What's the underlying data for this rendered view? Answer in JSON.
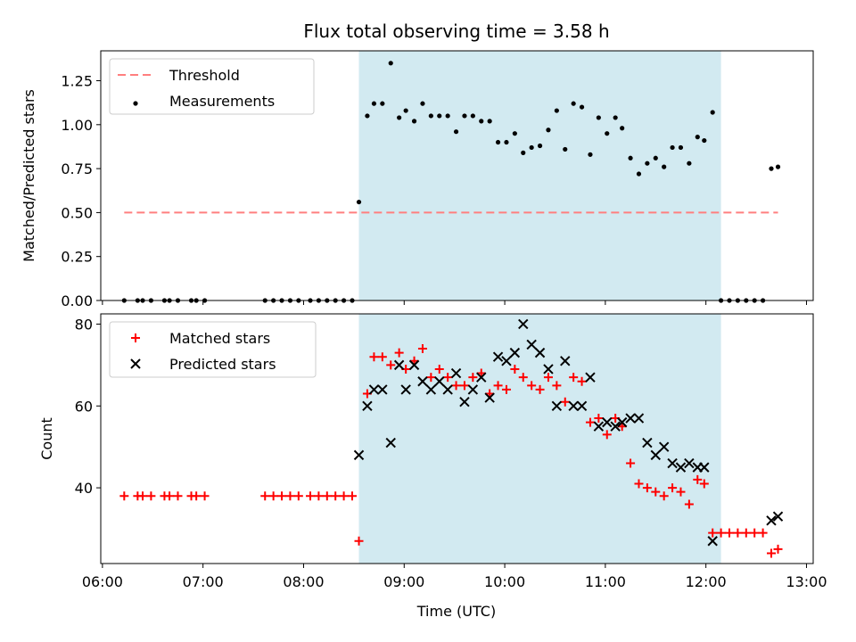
{
  "figure": {
    "title": "Flux total observing time = 3.58 h",
    "xlabel": "Time (UTC)"
  },
  "chart_data": [
    {
      "type": "scatter",
      "ylabel": "Matched/Predicted stars",
      "ylim": [
        0,
        1.42
      ],
      "yticks": [
        0,
        0.25,
        0.5,
        0.75,
        1.0,
        1.25
      ],
      "ytick_labels": [
        "0.00",
        "0.25",
        "0.50",
        "0.75",
        "1.00",
        "1.25"
      ],
      "xlim": [
        "05:59",
        "13:04"
      ],
      "xticks": [
        "06:00",
        "07:00",
        "08:00",
        "09:00",
        "10:00",
        "11:00",
        "12:00",
        "13:00"
      ],
      "shaded_interval": [
        "08:33",
        "12:09"
      ],
      "shade_color": "#add8e6",
      "legend_position": "upper left",
      "series": [
        {
          "name": "Threshold",
          "kind": "dashed-line",
          "color": "#ff7f7f",
          "x": [
            "06:13",
            "12:43"
          ],
          "y": [
            0.5,
            0.5
          ]
        },
        {
          "name": "Measurements",
          "kind": "dot",
          "color": "#000000",
          "points": [
            [
              "06:13",
              0
            ],
            [
              "06:21",
              0
            ],
            [
              "06:24",
              0
            ],
            [
              "06:29",
              0
            ],
            [
              "06:37",
              0
            ],
            [
              "06:40",
              0
            ],
            [
              "06:45",
              0
            ],
            [
              "06:53",
              0
            ],
            [
              "06:56",
              0
            ],
            [
              "07:01",
              0
            ],
            [
              "07:37",
              0
            ],
            [
              "07:42",
              0
            ],
            [
              "07:47",
              0
            ],
            [
              "07:52",
              0
            ],
            [
              "07:57",
              0
            ],
            [
              "08:04",
              0
            ],
            [
              "08:09",
              0
            ],
            [
              "08:14",
              0
            ],
            [
              "08:19",
              0
            ],
            [
              "08:24",
              0
            ],
            [
              "08:29",
              0
            ],
            [
              "08:33",
              0.56
            ],
            [
              "08:38",
              1.05
            ],
            [
              "08:42",
              1.12
            ],
            [
              "08:47",
              1.12
            ],
            [
              "08:52",
              1.35
            ],
            [
              "08:57",
              1.04
            ],
            [
              "09:01",
              1.08
            ],
            [
              "09:06",
              1.02
            ],
            [
              "09:11",
              1.12
            ],
            [
              "09:16",
              1.05
            ],
            [
              "09:21",
              1.05
            ],
            [
              "09:26",
              1.05
            ],
            [
              "09:31",
              0.96
            ],
            [
              "09:36",
              1.05
            ],
            [
              "09:41",
              1.05
            ],
            [
              "09:46",
              1.02
            ],
            [
              "09:51",
              1.02
            ],
            [
              "09:56",
              0.9
            ],
            [
              "10:01",
              0.9
            ],
            [
              "10:06",
              0.95
            ],
            [
              "10:11",
              0.84
            ],
            [
              "10:16",
              0.87
            ],
            [
              "10:21",
              0.88
            ],
            [
              "10:26",
              0.97
            ],
            [
              "10:31",
              1.08
            ],
            [
              "10:36",
              0.86
            ],
            [
              "10:41",
              1.12
            ],
            [
              "10:46",
              1.1
            ],
            [
              "10:51",
              0.83
            ],
            [
              "10:56",
              1.04
            ],
            [
              "11:01",
              0.95
            ],
            [
              "11:06",
              1.04
            ],
            [
              "11:10",
              0.98
            ],
            [
              "11:15",
              0.81
            ],
            [
              "11:20",
              0.72
            ],
            [
              "11:25",
              0.78
            ],
            [
              "11:30",
              0.81
            ],
            [
              "11:35",
              0.76
            ],
            [
              "11:40",
              0.87
            ],
            [
              "11:45",
              0.87
            ],
            [
              "11:50",
              0.78
            ],
            [
              "11:55",
              0.93
            ],
            [
              "11:59",
              0.91
            ],
            [
              "12:04",
              1.07
            ],
            [
              "12:09",
              0
            ],
            [
              "12:14",
              0
            ],
            [
              "12:19",
              0
            ],
            [
              "12:24",
              0
            ],
            [
              "12:29",
              0
            ],
            [
              "12:34",
              0
            ],
            [
              "12:39",
              0.75
            ],
            [
              "12:43",
              0.76
            ]
          ]
        }
      ]
    },
    {
      "type": "scatter",
      "ylabel": "Count",
      "ylim": [
        21.5,
        82.5
      ],
      "yticks": [
        40,
        60,
        80
      ],
      "ytick_labels": [
        "40",
        "60",
        "80"
      ],
      "xlim": [
        "05:59",
        "13:04"
      ],
      "xticks": [
        "06:00",
        "07:00",
        "08:00",
        "09:00",
        "10:00",
        "11:00",
        "12:00",
        "13:00"
      ],
      "xtick_labels": [
        "06:00",
        "07:00",
        "08:00",
        "09:00",
        "10:00",
        "11:00",
        "12:00",
        "13:00"
      ],
      "shaded_interval": [
        "08:33",
        "12:09"
      ],
      "shade_color": "#add8e6",
      "legend_position": "upper left",
      "series": [
        {
          "name": "Matched stars",
          "kind": "plus",
          "color": "#ff0000",
          "points": [
            [
              "06:13",
              38
            ],
            [
              "06:21",
              38
            ],
            [
              "06:24",
              38
            ],
            [
              "06:29",
              38
            ],
            [
              "06:37",
              38
            ],
            [
              "06:40",
              38
            ],
            [
              "06:45",
              38
            ],
            [
              "06:53",
              38
            ],
            [
              "06:56",
              38
            ],
            [
              "07:01",
              38
            ],
            [
              "07:37",
              38
            ],
            [
              "07:42",
              38
            ],
            [
              "07:47",
              38
            ],
            [
              "07:52",
              38
            ],
            [
              "07:57",
              38
            ],
            [
              "08:04",
              38
            ],
            [
              "08:09",
              38
            ],
            [
              "08:14",
              38
            ],
            [
              "08:19",
              38
            ],
            [
              "08:24",
              38
            ],
            [
              "08:29",
              38
            ],
            [
              "08:33",
              27
            ],
            [
              "08:38",
              63
            ],
            [
              "08:42",
              72
            ],
            [
              "08:47",
              72
            ],
            [
              "08:52",
              70
            ],
            [
              "08:57",
              73
            ],
            [
              "09:01",
              69
            ],
            [
              "09:06",
              71
            ],
            [
              "09:11",
              74
            ],
            [
              "09:16",
              67
            ],
            [
              "09:21",
              69
            ],
            [
              "09:26",
              67
            ],
            [
              "09:31",
              65
            ],
            [
              "09:36",
              65
            ],
            [
              "09:41",
              67
            ],
            [
              "09:46",
              68
            ],
            [
              "09:51",
              63
            ],
            [
              "09:56",
              65
            ],
            [
              "10:01",
              64
            ],
            [
              "10:06",
              69
            ],
            [
              "10:11",
              67
            ],
            [
              "10:16",
              65
            ],
            [
              "10:21",
              64
            ],
            [
              "10:26",
              67
            ],
            [
              "10:31",
              65
            ],
            [
              "10:36",
              61
            ],
            [
              "10:41",
              67
            ],
            [
              "10:46",
              66
            ],
            [
              "10:51",
              56
            ],
            [
              "10:56",
              57
            ],
            [
              "11:01",
              53
            ],
            [
              "11:06",
              57
            ],
            [
              "11:10",
              55
            ],
            [
              "11:15",
              46
            ],
            [
              "11:20",
              41
            ],
            [
              "11:25",
              40
            ],
            [
              "11:30",
              39
            ],
            [
              "11:35",
              38
            ],
            [
              "11:40",
              40
            ],
            [
              "11:45",
              39
            ],
            [
              "11:50",
              36
            ],
            [
              "11:55",
              42
            ],
            [
              "11:59",
              41
            ],
            [
              "12:04",
              29
            ],
            [
              "12:09",
              29
            ],
            [
              "12:14",
              29
            ],
            [
              "12:19",
              29
            ],
            [
              "12:24",
              29
            ],
            [
              "12:29",
              29
            ],
            [
              "12:34",
              29
            ],
            [
              "12:39",
              24
            ],
            [
              "12:43",
              25
            ]
          ]
        },
        {
          "name": "Predicted stars",
          "kind": "cross",
          "color": "#000000",
          "points": [
            [
              "08:33",
              48
            ],
            [
              "08:38",
              60
            ],
            [
              "08:42",
              64
            ],
            [
              "08:47",
              64
            ],
            [
              "08:52",
              51
            ],
            [
              "08:57",
              70
            ],
            [
              "09:01",
              64
            ],
            [
              "09:06",
              70
            ],
            [
              "09:11",
              66
            ],
            [
              "09:16",
              64
            ],
            [
              "09:21",
              66
            ],
            [
              "09:26",
              64
            ],
            [
              "09:31",
              68
            ],
            [
              "09:36",
              61
            ],
            [
              "09:41",
              64
            ],
            [
              "09:46",
              67
            ],
            [
              "09:51",
              62
            ],
            [
              "09:56",
              72
            ],
            [
              "10:01",
              71
            ],
            [
              "10:06",
              73
            ],
            [
              "10:11",
              80
            ],
            [
              "10:16",
              75
            ],
            [
              "10:21",
              73
            ],
            [
              "10:26",
              69
            ],
            [
              "10:31",
              60
            ],
            [
              "10:36",
              71
            ],
            [
              "10:41",
              60
            ],
            [
              "10:46",
              60
            ],
            [
              "10:51",
              67
            ],
            [
              "10:56",
              55
            ],
            [
              "11:01",
              56
            ],
            [
              "11:06",
              55
            ],
            [
              "11:10",
              56
            ],
            [
              "11:15",
              57
            ],
            [
              "11:20",
              57
            ],
            [
              "11:25",
              51
            ],
            [
              "11:30",
              48
            ],
            [
              "11:35",
              50
            ],
            [
              "11:40",
              46
            ],
            [
              "11:45",
              45
            ],
            [
              "11:50",
              46
            ],
            [
              "11:55",
              45
            ],
            [
              "11:59",
              45
            ],
            [
              "12:04",
              27
            ],
            [
              "12:39",
              32
            ],
            [
              "12:43",
              33
            ]
          ]
        }
      ]
    }
  ]
}
